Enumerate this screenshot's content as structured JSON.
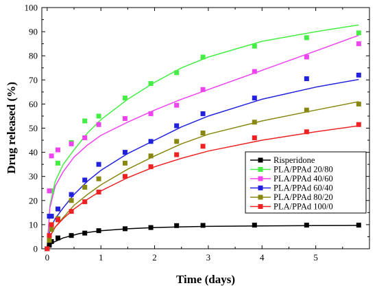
{
  "chart_data": {
    "type": "scatter",
    "title": "",
    "xlabel": "Time (days)",
    "ylabel": "Drug released (%)",
    "xlim": [
      -0.1,
      6.0
    ],
    "ylim": [
      0,
      100
    ],
    "xticks": [
      0,
      1,
      2,
      3,
      4,
      5
    ],
    "yticks": [
      0,
      10,
      20,
      30,
      40,
      50,
      60,
      70,
      80,
      90,
      100
    ],
    "grid": false,
    "legend_position": "bottom-right",
    "x": [
      0,
      0.04,
      0.08,
      0.2,
      0.45,
      0.7,
      0.96,
      1.45,
      1.93,
      2.41,
      2.9,
      3.86,
      4.83,
      5.8
    ],
    "series": [
      {
        "name": "Risperidone",
        "color": "#000000",
        "values": [
          0,
          1.5,
          3,
          4.5,
          5.5,
          6.5,
          7.5,
          8.3,
          8.8,
          9.6,
          9.7,
          9.8,
          9.8,
          9.8
        ],
        "fit": [
          [
            0,
            0
          ],
          [
            0.1,
            2.5
          ],
          [
            0.3,
            4.5
          ],
          [
            0.6,
            6.3
          ],
          [
            1.0,
            7.5
          ],
          [
            1.5,
            8.3
          ],
          [
            2.0,
            8.8
          ],
          [
            2.5,
            9.1
          ],
          [
            3.0,
            9.3
          ],
          [
            4.0,
            9.5
          ],
          [
            5.0,
            9.6
          ],
          [
            5.8,
            9.7
          ]
        ]
      },
      {
        "name": "PLA/PPAd 20/80",
        "color": "#44ee44",
        "values": [
          0,
          13.5,
          24,
          35.5,
          44,
          53,
          55,
          62.5,
          68.5,
          73,
          79.5,
          84,
          87.5,
          89.5
        ],
        "fit": [
          [
            0,
            0
          ],
          [
            0.05,
            18
          ],
          [
            0.15,
            28
          ],
          [
            0.3,
            35
          ],
          [
            0.5,
            41
          ],
          [
            0.75,
            48
          ],
          [
            1.0,
            53.5
          ],
          [
            1.5,
            62
          ],
          [
            2.0,
            69
          ],
          [
            2.5,
            75
          ],
          [
            3.0,
            79.5
          ],
          [
            4.0,
            86
          ],
          [
            5.0,
            90
          ],
          [
            5.8,
            92.8
          ]
        ]
      },
      {
        "name": "PLA/PPAd 40/60",
        "color": "#ee44ee",
        "values": [
          0,
          24,
          38.5,
          41,
          43.5,
          46,
          51.5,
          54,
          56,
          59.5,
          66,
          73.5,
          79.5,
          85
        ],
        "fit": [
          [
            0,
            0
          ],
          [
            0.05,
            17
          ],
          [
            0.15,
            26
          ],
          [
            0.3,
            32
          ],
          [
            0.5,
            38
          ],
          [
            0.75,
            43
          ],
          [
            1.0,
            47
          ],
          [
            1.5,
            52.5
          ],
          [
            2.0,
            57.5
          ],
          [
            2.5,
            62
          ],
          [
            3.0,
            66
          ],
          [
            4.0,
            74
          ],
          [
            5.0,
            82
          ],
          [
            5.8,
            88.5
          ]
        ]
      },
      {
        "name": "PLA/PPAd 60/40",
        "color": "#2222dd",
        "values": [
          0,
          13.5,
          13.5,
          16.5,
          22.5,
          28.5,
          35,
          40,
          44.5,
          51,
          56,
          62.5,
          70.5,
          72
        ],
        "fit": [
          [
            0,
            0
          ],
          [
            0.05,
            8
          ],
          [
            0.15,
            12.5
          ],
          [
            0.3,
            17
          ],
          [
            0.5,
            22.5
          ],
          [
            0.75,
            28
          ],
          [
            1.0,
            32.5
          ],
          [
            1.5,
            39.5
          ],
          [
            2.0,
            45
          ],
          [
            2.5,
            50.5
          ],
          [
            3.0,
            55
          ],
          [
            4.0,
            62
          ],
          [
            5.0,
            67
          ],
          [
            5.8,
            70.2
          ]
        ]
      },
      {
        "name": "PLA/PPAd 80/20",
        "color": "#888811",
        "values": [
          0,
          3.5,
          8,
          12.5,
          20,
          25.5,
          29,
          35.5,
          38.5,
          44.5,
          48,
          52.5,
          57.5,
          60
        ],
        "fit": [
          [
            0,
            0
          ],
          [
            0.05,
            5
          ],
          [
            0.15,
            9
          ],
          [
            0.3,
            13
          ],
          [
            0.5,
            18
          ],
          [
            0.75,
            22.5
          ],
          [
            1.0,
            26.5
          ],
          [
            1.5,
            33
          ],
          [
            2.0,
            38.5
          ],
          [
            2.5,
            43.5
          ],
          [
            3.0,
            47.5
          ],
          [
            4.0,
            53
          ],
          [
            5.0,
            57.5
          ],
          [
            5.8,
            61
          ]
        ]
      },
      {
        "name": "PLA/PPAd 100/0",
        "color": "#ee2222",
        "values": [
          0,
          5.5,
          10,
          12,
          15.5,
          19.5,
          23.5,
          30,
          34,
          39,
          42.5,
          46,
          48.5,
          51.5
        ],
        "fit": [
          [
            0,
            0
          ],
          [
            0.05,
            5
          ],
          [
            0.15,
            9
          ],
          [
            0.3,
            12.5
          ],
          [
            0.5,
            16.5
          ],
          [
            0.75,
            20.5
          ],
          [
            1.0,
            24
          ],
          [
            1.5,
            29.5
          ],
          [
            2.0,
            34
          ],
          [
            2.5,
            37.5
          ],
          [
            3.0,
            40.5
          ],
          [
            4.0,
            45
          ],
          [
            5.0,
            48.5
          ],
          [
            5.8,
            51
          ]
        ]
      }
    ]
  }
}
